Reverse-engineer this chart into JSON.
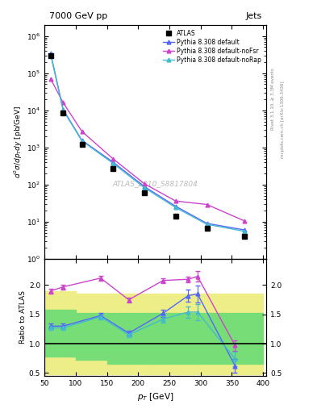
{
  "title_left": "7000 GeV pp",
  "title_right": "Jets",
  "xlabel": "p_{T} [GeV]",
  "ylabel_main": "d^{2}#sigma/dp_{T}dy [pb/GeV]",
  "ylabel_ratio": "Ratio to ATLAS",
  "watermark": "ATLAS_2010_S8817804",
  "atlas_x": [
    60,
    80,
    110,
    160,
    210,
    260,
    310,
    370
  ],
  "atlas_y": [
    300000.0,
    8500.0,
    1200.0,
    270,
    60,
    14,
    6.5,
    4.0
  ],
  "py_default_x": [
    60,
    80,
    110,
    160,
    210,
    260,
    310,
    370
  ],
  "py_default_y": [
    340000.0,
    10500.0,
    1550.0,
    400,
    88,
    26,
    9,
    6.0
  ],
  "py_noFsr_x": [
    60,
    80,
    110,
    160,
    210,
    260,
    310,
    370
  ],
  "py_noFsr_y": [
    70000.0,
    16000.0,
    2700.0,
    490,
    105,
    36,
    29,
    10.5
  ],
  "py_noRap_x": [
    60,
    80,
    110,
    160,
    210,
    260,
    310,
    370
  ],
  "py_noRap_y": [
    320000.0,
    10000.0,
    1500.0,
    370,
    82,
    24,
    8.5,
    5.5
  ],
  "ratio_x": [
    60,
    80,
    140,
    185,
    240,
    280,
    295,
    355
  ],
  "ratio_default_y": [
    1.3,
    1.3,
    1.48,
    1.18,
    1.52,
    1.82,
    1.85,
    0.62
  ],
  "ratio_default_err": [
    0.04,
    0.04,
    0.04,
    0.04,
    0.06,
    0.1,
    0.14,
    0.12
  ],
  "ratio_noFsr_y": [
    1.9,
    1.97,
    2.12,
    1.75,
    2.08,
    2.1,
    2.15,
    0.97
  ],
  "ratio_noFsr_err": [
    0.04,
    0.04,
    0.04,
    0.04,
    0.04,
    0.05,
    0.09,
    0.09
  ],
  "ratio_noRap_y": [
    1.27,
    1.27,
    1.46,
    1.15,
    1.42,
    1.54,
    1.54,
    0.74
  ],
  "ratio_noRap_err": [
    0.04,
    0.04,
    0.04,
    0.04,
    0.06,
    0.1,
    0.14,
    0.12
  ],
  "band_x_edges": [
    50,
    100,
    150,
    220,
    290,
    400
  ],
  "band_yellow_lo": [
    0.47,
    0.47,
    0.47,
    0.47,
    0.47,
    0.47
  ],
  "band_yellow_hi": [
    1.9,
    1.85,
    1.85,
    1.85,
    1.85,
    1.85
  ],
  "band_green_lo": [
    0.78,
    0.73,
    0.65,
    0.65,
    0.65,
    0.65
  ],
  "band_green_hi": [
    1.58,
    1.53,
    1.53,
    1.53,
    1.53,
    1.53
  ],
  "color_atlas": "#000000",
  "color_default": "#5566ff",
  "color_noFsr": "#cc44cc",
  "color_noRap": "#44bbcc",
  "color_green": "#77dd77",
  "color_yellow": "#eeee88",
  "ylim_main": [
    1.0,
    2000000.0
  ],
  "ylim_ratio": [
    0.45,
    2.45
  ],
  "xlim": [
    50,
    405
  ]
}
